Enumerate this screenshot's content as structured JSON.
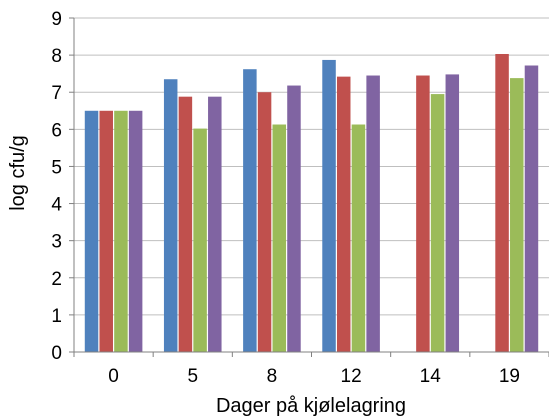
{
  "chart_data": {
    "type": "bar",
    "title": "",
    "xlabel": "Dager på kjølelagring",
    "ylabel": "log cfu/g",
    "categories": [
      "0",
      "5",
      "8",
      "12",
      "14",
      "19"
    ],
    "ylim": [
      0,
      9
    ],
    "yticks": [
      "0",
      "1",
      "2",
      "3",
      "4",
      "5",
      "6",
      "7",
      "8",
      "9"
    ],
    "grid": "horizontal",
    "legend": "none",
    "series": [
      {
        "color": "#4f81bd",
        "values": [
          6.5,
          7.35,
          7.62,
          7.87,
          null,
          null
        ]
      },
      {
        "color": "#c0504d",
        "values": [
          6.5,
          6.88,
          7.0,
          7.42,
          7.45,
          8.03
        ]
      },
      {
        "color": "#9bbb59",
        "values": [
          6.5,
          6.02,
          6.13,
          6.13,
          6.95,
          7.38
        ]
      },
      {
        "color": "#8064a2",
        "values": [
          6.5,
          6.88,
          7.18,
          7.45,
          7.48,
          7.72
        ]
      }
    ]
  }
}
